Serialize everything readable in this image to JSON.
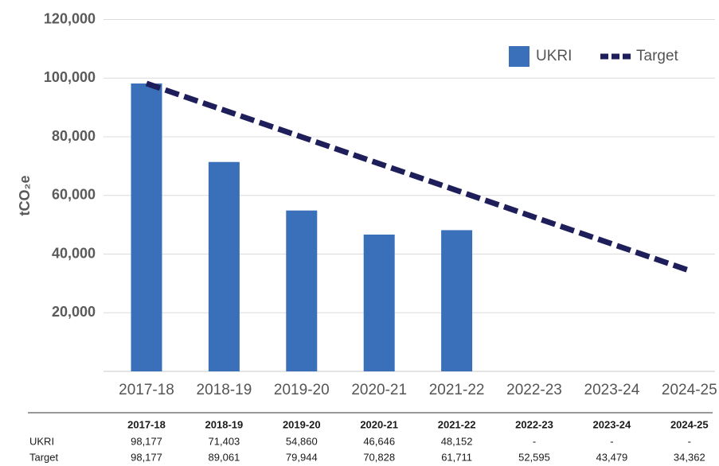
{
  "chart_data": {
    "type": "bar_line",
    "y_label": "tCO₂e",
    "categories": [
      "2017-18",
      "2018-19",
      "2019-20",
      "2020-21",
      "2021-22",
      "2022-23",
      "2023-24",
      "2024-25"
    ],
    "series": [
      {
        "name": "UKRI",
        "type": "bar",
        "color": "#3a70b9",
        "values": [
          98177,
          71403,
          54860,
          46646,
          48152,
          null,
          null,
          null
        ],
        "value_labels": [
          "98,177",
          "71,403",
          "54,860",
          "46,646",
          "48,152",
          "-",
          "-",
          "-"
        ]
      },
      {
        "name": "Target",
        "type": "line",
        "color": "#1e1e5a",
        "dashed": true,
        "values": [
          98177,
          89061,
          79944,
          70828,
          61711,
          52595,
          43479,
          34362
        ],
        "value_labels": [
          "98,177",
          "89,061",
          "79,944",
          "70,828",
          "61,711",
          "52,595",
          "43,479",
          "34,362"
        ]
      }
    ],
    "ylim": [
      0,
      120000
    ],
    "yticks": [
      {
        "value": 20000,
        "label": "20,000"
      },
      {
        "value": 40000,
        "label": "40,000"
      },
      {
        "value": 60000,
        "label": "60,000"
      },
      {
        "value": 80000,
        "label": "80,000"
      },
      {
        "value": 100000,
        "label": "100,000"
      },
      {
        "value": 120000,
        "label": "120,000"
      }
    ],
    "grid": true,
    "legend": "top-right"
  }
}
